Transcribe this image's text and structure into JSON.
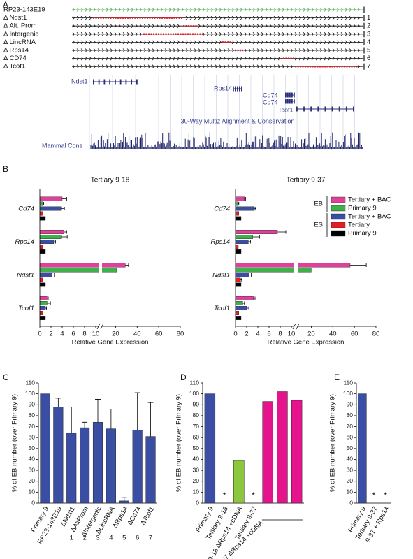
{
  "panel_labels": [
    "A",
    "B",
    "C",
    "D",
    "E"
  ],
  "panel_a": {
    "constructs": [
      {
        "label": "RP23-143E19",
        "number": null
      },
      {
        "label": "Δ Ndst1",
        "number": "1"
      },
      {
        "label": "Δ Alt. Prom",
        "number": "2"
      },
      {
        "label": "Δ Intergenic",
        "number": "3"
      },
      {
        "label": "Δ LincRNA",
        "number": "4"
      },
      {
        "label": "Δ Rps14",
        "number": "5"
      },
      {
        "label": "Δ CD74",
        "number": "6"
      },
      {
        "label": "Δ Tcof1",
        "number": "7"
      }
    ],
    "genes": [
      "Ndst1",
      "Rps14",
      "Cd74",
      "Cd74",
      "Tcof1"
    ],
    "track_title": "30-Way Multiz Alignment & Conservation",
    "cons_label": "Mammal Cons"
  },
  "chart_data": [
    {
      "type": "hbar",
      "title": "Tertiary 9-18",
      "categories": [
        "Cd74",
        "Rps14",
        "Ndst1",
        "Tcof1"
      ],
      "xlabel": "Relative Gene Expression",
      "xlim": [
        0,
        80
      ],
      "xbreak": 10,
      "xticks": [
        0,
        2,
        4,
        6,
        8,
        10,
        20,
        40,
        60,
        80
      ],
      "series": [
        {
          "name": "Tertiary + BAC",
          "group": "EB",
          "color": "#e0409a",
          "values": [
            4.0,
            4.3,
            29,
            1.3
          ],
          "errors": [
            0.8,
            0.5,
            3,
            0.2
          ]
        },
        {
          "name": "Primary 9",
          "group": "EB",
          "color": "#3fb04a",
          "values": [
            0.6,
            3.9,
            21,
            1.3
          ],
          "errors": [
            0.1,
            1.0,
            null,
            0.6
          ]
        },
        {
          "name": "Tertiary + BAC",
          "group": "ES",
          "color": "#3a4fa3",
          "values": [
            3.9,
            2.5,
            2.2,
            1.0
          ],
          "errors": [
            0.5,
            0.3,
            0.4,
            0.2
          ]
        },
        {
          "name": "Tertiary",
          "group": "ES",
          "color": "#e31e24",
          "values": [
            0.6,
            0.5,
            0.5,
            0.5
          ]
        },
        {
          "name": "Primary 9",
          "group": "ES",
          "color": "#000000",
          "values": [
            1,
            1,
            1,
            1
          ]
        }
      ]
    },
    {
      "type": "hbar",
      "title": "Tertiary 9-37",
      "categories": [
        "Cd74",
        "Rps14",
        "Ndst1",
        "Tcof1"
      ],
      "xlabel": "Relative Gene Expression",
      "xlim": [
        0,
        80
      ],
      "xbreak": 10,
      "xticks": [
        0,
        2,
        4,
        6,
        8,
        10,
        20,
        40,
        60,
        80
      ],
      "series": [
        {
          "name": "Tertiary + BAC",
          "group": "EB",
          "color": "#e0409a",
          "values": [
            1.6,
            7.5,
            56,
            3.2
          ],
          "errors": [
            0.2,
            1.5,
            15,
            0.3
          ]
        },
        {
          "name": "Primary 9",
          "group": "EB",
          "color": "#3fb04a",
          "values": [
            0.5,
            3.1,
            20,
            1.3
          ],
          "errors": [
            0.1,
            1.2,
            null,
            0.3
          ]
        },
        {
          "name": "Tertiary + BAC",
          "group": "ES",
          "color": "#3a4fa3",
          "values": [
            3.4,
            2.3,
            2.4,
            2.0
          ],
          "errors": [
            0.2,
            0.4,
            0.4,
            0.4
          ]
        },
        {
          "name": "Tertiary",
          "group": "ES",
          "color": "#e31e24",
          "values": [
            0.6,
            0.5,
            0.9,
            0.6
          ],
          "errors": [
            null,
            null,
            0.2,
            null
          ]
        },
        {
          "name": "Primary 9",
          "group": "ES",
          "color": "#000000",
          "values": [
            1,
            1,
            1,
            1
          ]
        }
      ]
    },
    {
      "type": "bar",
      "ylabel": "% of EB number (over Primary 9)",
      "ylim": [
        0,
        110
      ],
      "yticks": [
        0,
        10,
        20,
        30,
        40,
        50,
        60,
        70,
        80,
        90,
        100,
        110
      ],
      "color": "#3a4fa3",
      "categories": [
        "Primary 9",
        "RP23-143E19",
        "ΔNdst1",
        "ΔAltProm",
        "ΔIntergenic",
        "ΔLincRNA",
        "ΔRps14",
        "ΔCd74",
        "ΔTcof1"
      ],
      "category_numbers": [
        null,
        null,
        "1",
        "2",
        "3",
        "4",
        "5",
        "6",
        "7"
      ],
      "values": [
        100,
        88,
        64,
        69,
        74,
        68,
        2,
        67,
        61
      ],
      "errors": [
        null,
        8,
        24,
        5,
        21,
        18,
        3,
        34,
        31
      ]
    },
    {
      "type": "bar",
      "ylabel": "% of EB number (over Primary 9)",
      "ylim": [
        0,
        110
      ],
      "yticks": [
        0,
        10,
        20,
        30,
        40,
        50,
        60,
        70,
        80,
        90,
        100,
        110
      ],
      "categories": [
        "Primary 9",
        "Tertiary 9-18",
        "9-18 ΔRps14 +cDNA",
        "Tertiary 9-37",
        null,
        null,
        null
      ],
      "group_label": "9-37 ΔRps14 +cDNA",
      "colors": [
        "#3a4fa3",
        null,
        "#8dc63f",
        null,
        "#e6148c",
        "#e6148c",
        "#e6148c"
      ],
      "values": [
        100,
        null,
        39,
        null,
        93,
        102,
        94
      ],
      "value_labels": [
        null,
        "*",
        null,
        "*",
        null,
        null,
        null
      ]
    },
    {
      "type": "bar",
      "ylabel": "% of EB number (over Primary 9)",
      "ylim": [
        0,
        110
      ],
      "yticks": [
        0,
        10,
        20,
        30,
        40,
        50,
        60,
        70,
        80,
        90,
        100,
        110
      ],
      "color": "#3a4fa3",
      "categories": [
        "Primary 9",
        "Tertiary 9-37",
        "9-37 + Rps14"
      ],
      "values": [
        100,
        null,
        null
      ],
      "value_labels": [
        null,
        "*",
        "*"
      ]
    }
  ]
}
